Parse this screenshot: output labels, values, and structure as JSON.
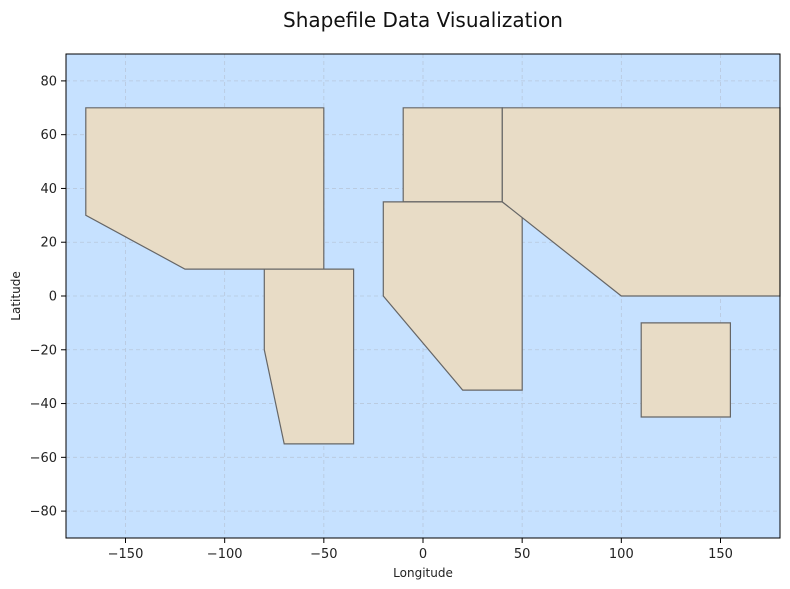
{
  "chart_data": {
    "type": "map",
    "title": "Shapefile Data Visualization",
    "xlabel": "Longitude",
    "ylabel": "Latitude",
    "xlim": [
      -180,
      180
    ],
    "ylim": [
      -90,
      90
    ],
    "xticks": [
      -150,
      -100,
      -50,
      0,
      50,
      100,
      150
    ],
    "xtick_labels": [
      "−150",
      "−100",
      "−50",
      "0",
      "50",
      "100",
      "150"
    ],
    "yticks": [
      -80,
      -60,
      -40,
      -20,
      0,
      20,
      40,
      60,
      80
    ],
    "ytick_labels": [
      "−80",
      "−60",
      "−40",
      "−20",
      "0",
      "20",
      "40",
      "60",
      "80"
    ],
    "grid": true,
    "ocean_color": "#c6e1ff",
    "land_color": "#e8dcc6",
    "edge_color": "#666666",
    "polygons": [
      [
        [
          -170,
          70
        ],
        [
          -50,
          70
        ],
        [
          -50,
          10
        ],
        [
          -120,
          10
        ],
        [
          -170,
          30
        ]
      ],
      [
        [
          -80,
          10
        ],
        [
          -35,
          10
        ],
        [
          -35,
          -55
        ],
        [
          -70,
          -55
        ],
        [
          -80,
          -20
        ]
      ],
      [
        [
          -10,
          70
        ],
        [
          40,
          70
        ],
        [
          40,
          35
        ],
        [
          -10,
          35
        ]
      ],
      [
        [
          -20,
          35
        ],
        [
          40,
          35
        ],
        [
          50,
          30
        ],
        [
          50,
          -35
        ],
        [
          20,
          -35
        ],
        [
          -20,
          0
        ]
      ],
      [
        [
          40,
          70
        ],
        [
          180,
          70
        ],
        [
          180,
          0
        ],
        [
          100,
          0
        ],
        [
          40,
          35
        ]
      ],
      [
        [
          110,
          -10
        ],
        [
          155,
          -10
        ],
        [
          155,
          -45
        ],
        [
          110,
          -45
        ]
      ]
    ]
  }
}
